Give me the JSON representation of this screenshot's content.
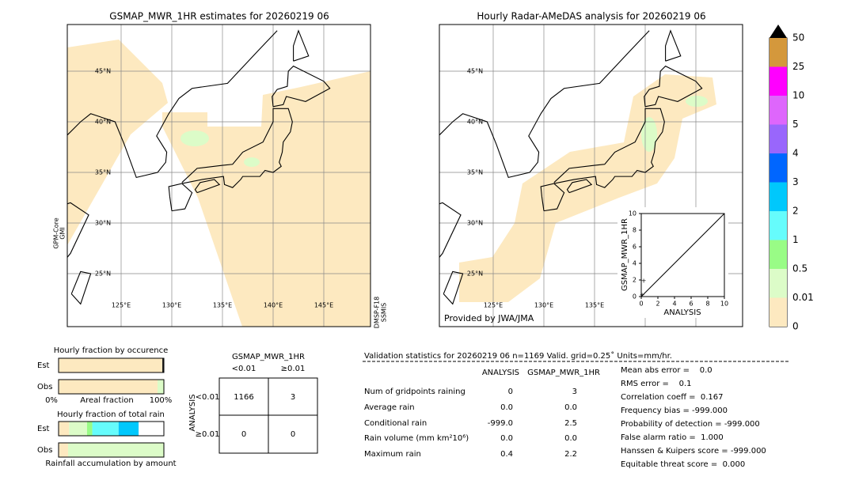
{
  "left_map": {
    "title": "GSMAP_MWR_1HR estimates for 20260219 06",
    "lat_labels": [
      "45°N",
      "40°N",
      "35°N",
      "30°N",
      "25°N"
    ],
    "lon_labels": [
      "125°E",
      "130°E",
      "135°E",
      "140°E",
      "145°E"
    ],
    "satellite_left": [
      "GPM-Core",
      "GMI"
    ],
    "satellite_right": [
      "DMSP-F18",
      "SSMIS"
    ]
  },
  "right_map": {
    "title": "Hourly Radar-AMeDAS analysis for 20260219 06",
    "lat_labels": [
      "45°N",
      "40°N",
      "35°N",
      "30°N",
      "25°N"
    ],
    "lon_labels": [
      "125°E",
      "130°E",
      "135°E"
    ],
    "credit": "Provided by JWA/JMA"
  },
  "scatter_inset": {
    "type": "scatter",
    "xlabel": "ANALYSIS",
    "ylabel": "GSMAP_MWR_1HR",
    "xlim": [
      0,
      10
    ],
    "ylim": [
      0,
      10
    ],
    "xticks": [
      0,
      2,
      4,
      6,
      8,
      10
    ],
    "yticks": [
      0,
      2,
      4,
      6,
      8,
      10
    ],
    "x": [
      0,
      0.1,
      0.3
    ],
    "y": [
      0,
      0.2,
      1.9
    ]
  },
  "colorbar": {
    "labels": [
      "0",
      "0.01",
      "0.5",
      "1",
      "2",
      "3",
      "4",
      "5",
      "10",
      "25",
      "50"
    ],
    "colors": [
      "#fde9c0",
      "#dcfcc8",
      "#99fc86",
      "#66fcfc",
      "#00c8fc",
      "#0066ff",
      "#9966fc",
      "#de66fc",
      "#ff00ff",
      "#d4983c"
    ],
    "extend_color": "#000000"
  },
  "fraction_occurrence": {
    "title": "Hourly fraction by occurence",
    "axis_labels": [
      "0%",
      "Areal fraction",
      "100%"
    ],
    "bars": [
      {
        "label": "Est",
        "segments": [
          {
            "color": "#fde9c0",
            "value": 0.985
          },
          {
            "color": "#222222",
            "value": 0.015
          }
        ]
      },
      {
        "label": "Obs",
        "segments": [
          {
            "color": "#fde9c0",
            "value": 0.94
          },
          {
            "color": "#dcfcc8",
            "value": 0.06
          }
        ]
      }
    ]
  },
  "fraction_rain": {
    "title": "Hourly fraction of total rain",
    "footer": "Rainfall accumulation by amount",
    "bars": [
      {
        "label": "Est",
        "segments": [
          {
            "color": "#fde9c0",
            "value": 0.1
          },
          {
            "color": "#dcfcc8",
            "value": 0.17
          },
          {
            "color": "#99fc86",
            "value": 0.05
          },
          {
            "color": "#66fcfc",
            "value": 0.25
          },
          {
            "color": "#00c8fc",
            "value": 0.19
          }
        ]
      },
      {
        "label": "Obs",
        "segments": [
          {
            "color": "#fde9c0",
            "value": 0.09
          },
          {
            "color": "#dcfcc8",
            "value": 0.91
          }
        ]
      }
    ]
  },
  "contingency": {
    "title": "GSMAP_MWR_1HR",
    "columns": [
      "<0.01",
      "≥0.01"
    ],
    "rows": [
      "<0.01",
      "≥0.01"
    ],
    "row_axis": "ANALYSIS",
    "cells": [
      [
        1166,
        3
      ],
      [
        0,
        0
      ]
    ]
  },
  "validation": {
    "header": "Validation statistics for 20260219 06  n=1169 Valid. grid=0.25˚ Units=mm/hr.",
    "columns": [
      "ANALYSIS",
      "GSMAP_MWR_1HR"
    ],
    "rows": [
      [
        "Num of gridpoints raining",
        "0",
        "3"
      ],
      [
        "Average rain",
        "0.0",
        "0.0"
      ],
      [
        "Conditional rain",
        "-999.0",
        "2.5"
      ],
      [
        "Rain volume (mm km²10⁶)",
        "0.0",
        "0.0"
      ],
      [
        "Maximum rain",
        "0.4",
        "2.2"
      ]
    ],
    "scores": [
      "Mean abs error =    0.0",
      "RMS error =    0.1",
      "Correlation coeff =  0.167",
      "Frequency bias = -999.000",
      "Probability of detection = -999.000",
      "False alarm ratio =  1.000",
      "Hanssen & Kuipers score = -999.000",
      "Equitable threat score =  0.000"
    ]
  }
}
